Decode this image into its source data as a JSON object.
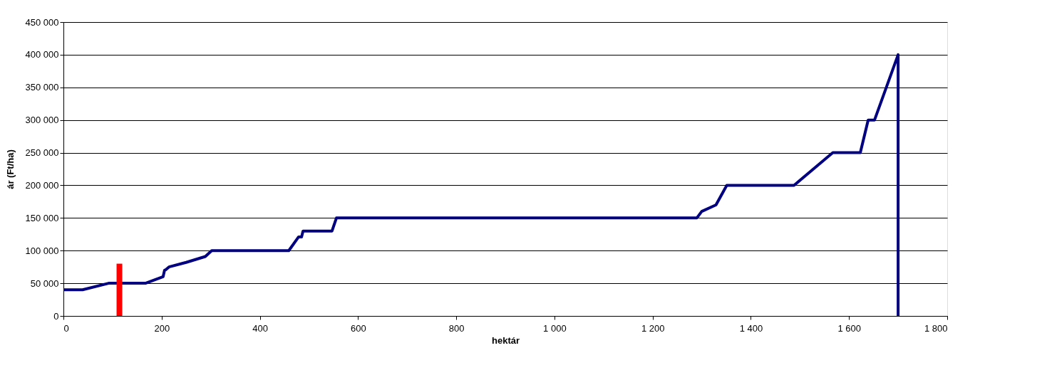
{
  "chart_data": {
    "type": "line",
    "xlabel": "hektár",
    "ylabel": "ár (Ft/ha)",
    "series": [
      {
        "color": "#000080",
        "x": [
          0,
          39,
          92,
          167,
          203,
          206,
          209,
          215,
          250,
          289,
          302,
          459,
          479,
          485,
          488,
          547,
          556,
          1290,
          1300,
          1329,
          1351,
          1488,
          1567,
          1623,
          1639,
          1652,
          1700,
          1700
        ],
        "values": [
          40000,
          40000,
          50000,
          50000,
          60000,
          70000,
          71000,
          75000,
          82000,
          91000,
          100000,
          100000,
          121000,
          121000,
          130000,
          130000,
          150000,
          150000,
          160000,
          170000,
          200000,
          200000,
          250000,
          250000,
          300000,
          300000,
          400000,
          0
        ]
      },
      {
        "color": "#ff0000",
        "x": [
          114,
          114
        ],
        "values": [
          0,
          80000
        ]
      }
    ],
    "xlim": [
      0,
      1800
    ],
    "ylim": [
      0,
      450000
    ],
    "xticks": [
      0,
      200,
      400,
      600,
      800,
      {
        "value": 1000,
        "label": "1 000"
      },
      {
        "value": 1200,
        "label": "1 200"
      },
      {
        "value": 1400,
        "label": "1 400"
      },
      {
        "value": 1600,
        "label": "1 600"
      },
      {
        "value": 1800,
        "label": "1 800"
      }
    ],
    "yticks": [
      0,
      {
        "value": 50000,
        "label": "50 000"
      },
      {
        "value": 100000,
        "label": "100 000"
      },
      {
        "value": 150000,
        "label": "150 000"
      },
      {
        "value": 200000,
        "label": "200 000"
      },
      {
        "value": 250000,
        "label": "250 000"
      },
      {
        "value": 300000,
        "label": "300 000"
      },
      {
        "value": 350000,
        "label": "350 000"
      },
      {
        "value": 400000,
        "label": "400 000"
      },
      {
        "value": 450000,
        "label": "450 000"
      }
    ],
    "grid": "y",
    "marker": "none",
    "line_style": "solid"
  }
}
